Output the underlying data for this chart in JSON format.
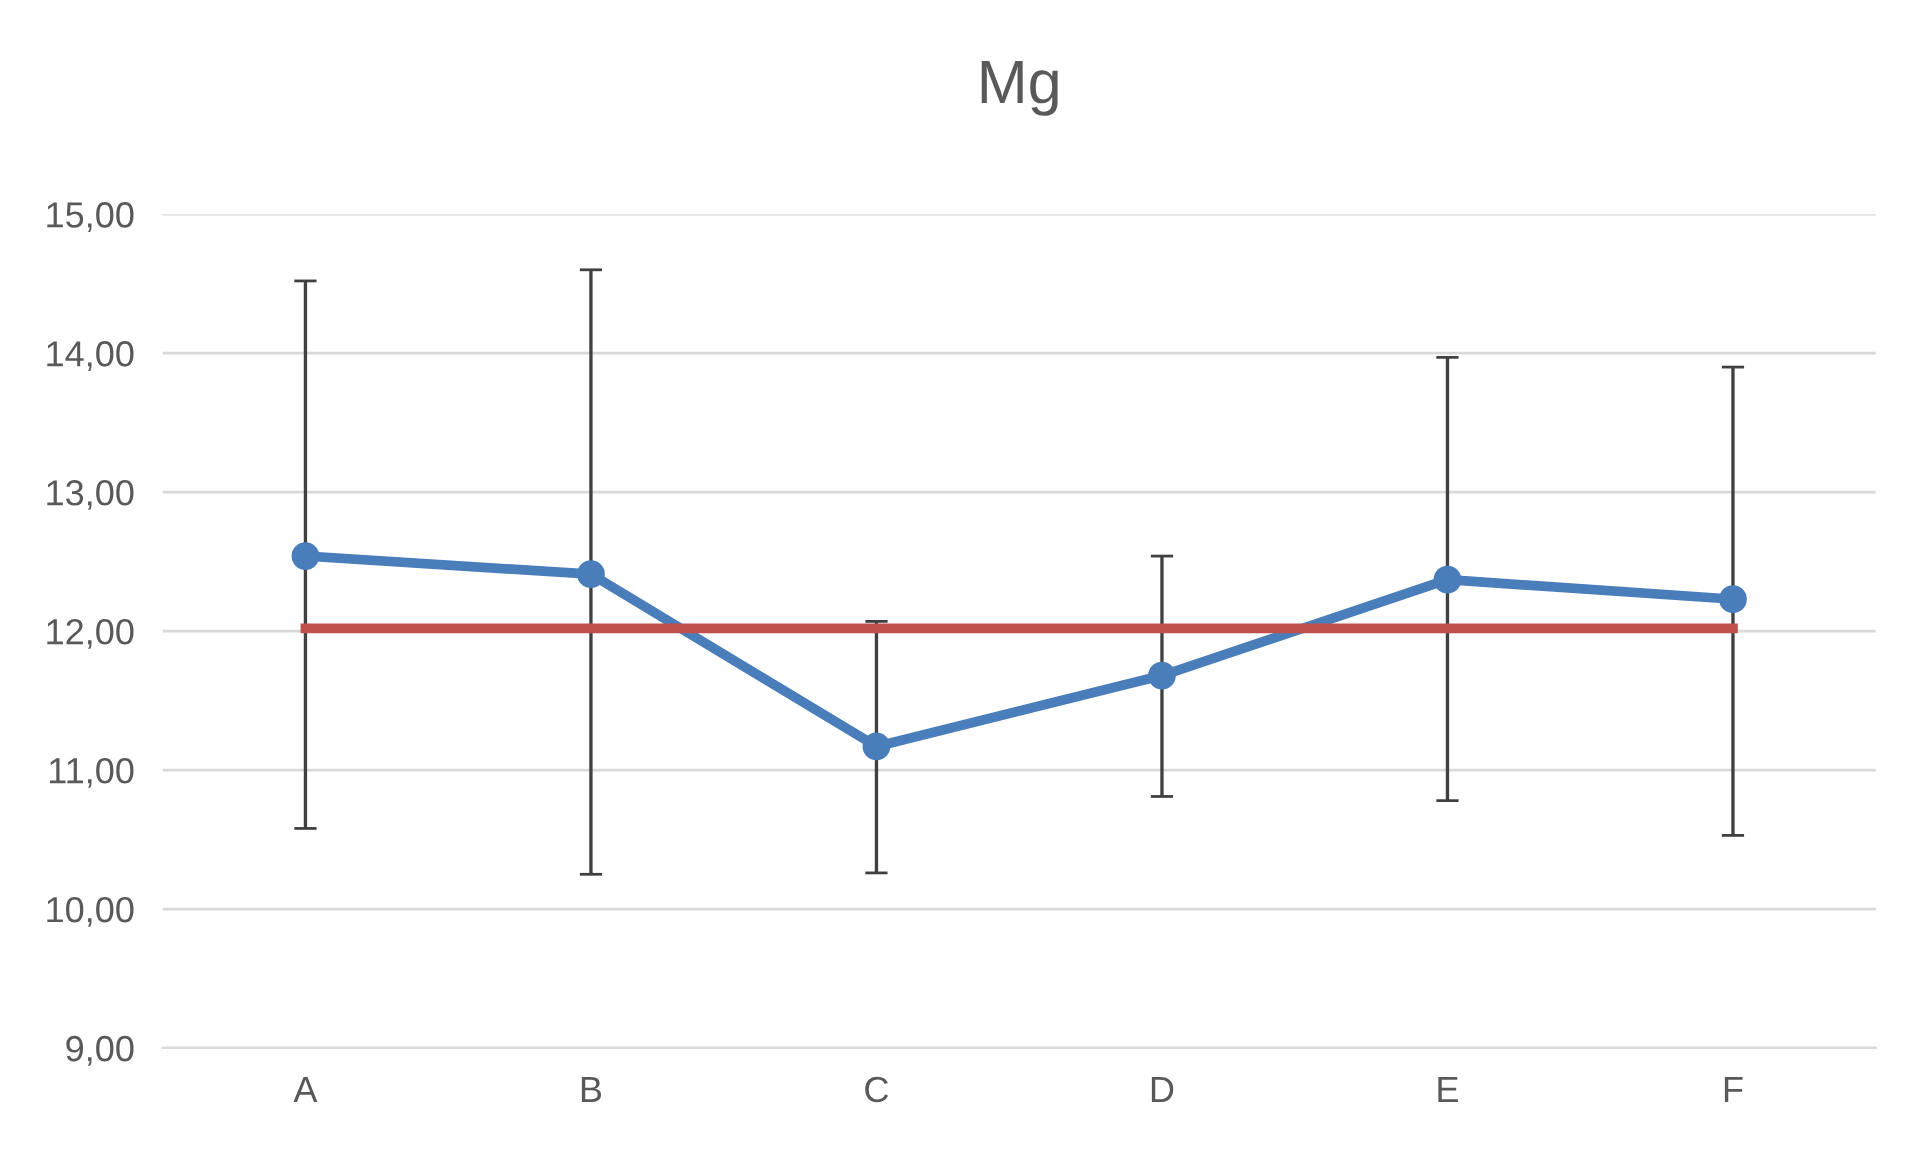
{
  "chart_data": {
    "type": "line",
    "title": "Mg",
    "categories": [
      "A",
      "B",
      "C",
      "D",
      "E",
      "F"
    ],
    "series": [
      {
        "color": "#4a7ebb",
        "marker": "circle",
        "values": [
          12.54,
          12.41,
          11.17,
          11.68,
          12.37,
          12.23
        ],
        "errors": [
          [
            10.58,
            14.52
          ],
          [
            10.25,
            14.6
          ],
          [
            10.26,
            12.07
          ],
          [
            10.81,
            12.54
          ],
          [
            10.78,
            13.97
          ],
          [
            10.53,
            13.9
          ]
        ]
      },
      {
        "color": "#c0504d",
        "marker": "none",
        "values": [
          12.02,
          12.02,
          12.02,
          12.02,
          12.02,
          12.02
        ]
      }
    ],
    "ylim": [
      9,
      15
    ],
    "yticks": [
      {
        "value": 9,
        "label": "9,00"
      },
      {
        "value": 10,
        "label": "10,00"
      },
      {
        "value": 11,
        "label": "11,00"
      },
      {
        "value": 12,
        "label": "12,00"
      },
      {
        "value": 13,
        "label": "13,00"
      },
      {
        "value": 14,
        "label": "14,00"
      },
      {
        "value": 15,
        "label": "15,00"
      }
    ],
    "grid": "y",
    "legend": false,
    "line_style": "solid"
  }
}
